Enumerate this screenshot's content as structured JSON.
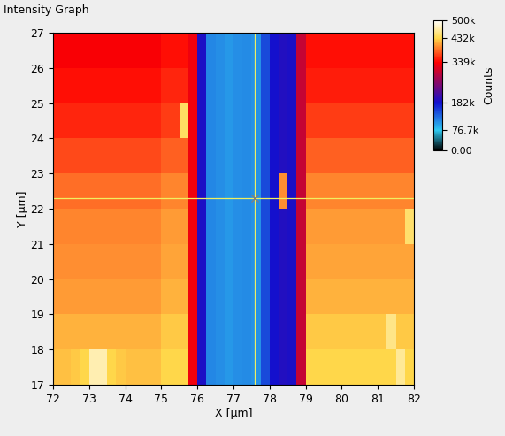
{
  "chart_data": {
    "type": "heatmap",
    "title": "Intensity Graph",
    "x_label": "X [µm]",
    "y_label": "Y [µm]",
    "x": [
      72.125,
      72.375,
      72.625,
      72.875,
      73.125,
      73.375,
      73.625,
      73.875,
      74.125,
      74.375,
      74.625,
      74.875,
      75.125,
      75.375,
      75.625,
      75.875,
      76.125,
      76.375,
      76.625,
      76.875,
      77.125,
      77.375,
      77.625,
      77.875,
      78.125,
      78.375,
      78.625,
      78.875,
      79.125,
      79.375,
      79.625,
      79.875,
      80.125,
      80.375,
      80.625,
      80.875,
      81.125,
      81.375,
      81.625,
      81.875
    ],
    "y": [
      17.5,
      18.5,
      19.5,
      20.5,
      21.5,
      22.5,
      23.5,
      24.5,
      25.5,
      26.5
    ],
    "z": [
      [
        420000,
        420000,
        425000,
        430000,
        470000,
        470000,
        430000,
        425000,
        420000,
        420000,
        420000,
        420000,
        430000,
        430000,
        430000,
        330000,
        190000,
        115000,
        110000,
        105000,
        110000,
        112000,
        108000,
        150000,
        185000,
        195000,
        190000,
        300000,
        430000,
        430000,
        430000,
        430000,
        430000,
        430000,
        430000,
        430000,
        430000,
        430000,
        460000,
        430000
      ],
      [
        415000,
        415000,
        415000,
        415000,
        415000,
        415000,
        415000,
        415000,
        415000,
        415000,
        415000,
        415000,
        425000,
        425000,
        425000,
        330000,
        190000,
        115000,
        110000,
        105000,
        110000,
        112000,
        108000,
        150000,
        185000,
        195000,
        190000,
        300000,
        425000,
        425000,
        425000,
        425000,
        425000,
        425000,
        425000,
        425000,
        425000,
        455000,
        425000,
        425000
      ],
      [
        405000,
        405000,
        405000,
        405000,
        405000,
        405000,
        405000,
        405000,
        405000,
        405000,
        405000,
        405000,
        415000,
        415000,
        415000,
        330000,
        190000,
        115000,
        110000,
        105000,
        110000,
        112000,
        108000,
        150000,
        185000,
        195000,
        190000,
        300000,
        415000,
        415000,
        415000,
        415000,
        415000,
        415000,
        415000,
        415000,
        415000,
        415000,
        415000,
        415000
      ],
      [
        400000,
        400000,
        400000,
        400000,
        400000,
        400000,
        400000,
        400000,
        400000,
        400000,
        400000,
        400000,
        410000,
        410000,
        410000,
        330000,
        190000,
        115000,
        110000,
        105000,
        110000,
        112000,
        108000,
        150000,
        185000,
        195000,
        190000,
        300000,
        410000,
        410000,
        410000,
        410000,
        410000,
        410000,
        410000,
        410000,
        410000,
        410000,
        410000,
        410000
      ],
      [
        395000,
        395000,
        395000,
        395000,
        395000,
        395000,
        395000,
        395000,
        395000,
        395000,
        395000,
        395000,
        405000,
        405000,
        405000,
        330000,
        190000,
        115000,
        110000,
        105000,
        110000,
        112000,
        108000,
        150000,
        185000,
        195000,
        190000,
        300000,
        405000,
        405000,
        405000,
        405000,
        405000,
        405000,
        405000,
        405000,
        405000,
        405000,
        405000,
        445000
      ],
      [
        385000,
        385000,
        385000,
        385000,
        385000,
        385000,
        385000,
        385000,
        385000,
        385000,
        385000,
        385000,
        395000,
        395000,
        395000,
        330000,
        190000,
        115000,
        110000,
        105000,
        110000,
        112000,
        108000,
        150000,
        185000,
        400000,
        190000,
        300000,
        395000,
        395000,
        395000,
        395000,
        395000,
        395000,
        395000,
        395000,
        395000,
        395000,
        395000,
        395000
      ],
      [
        370000,
        370000,
        370000,
        370000,
        370000,
        370000,
        370000,
        370000,
        370000,
        370000,
        370000,
        370000,
        380000,
        380000,
        380000,
        330000,
        190000,
        115000,
        110000,
        105000,
        110000,
        112000,
        108000,
        150000,
        185000,
        195000,
        190000,
        300000,
        380000,
        380000,
        380000,
        380000,
        380000,
        380000,
        380000,
        380000,
        380000,
        380000,
        380000,
        380000
      ],
      [
        355000,
        355000,
        355000,
        355000,
        355000,
        355000,
        355000,
        355000,
        355000,
        355000,
        355000,
        355000,
        365000,
        365000,
        440000,
        330000,
        190000,
        115000,
        110000,
        105000,
        110000,
        112000,
        108000,
        150000,
        185000,
        195000,
        190000,
        300000,
        365000,
        365000,
        365000,
        365000,
        365000,
        365000,
        365000,
        365000,
        365000,
        365000,
        365000,
        365000
      ],
      [
        345000,
        345000,
        345000,
        345000,
        345000,
        345000,
        345000,
        345000,
        345000,
        345000,
        345000,
        345000,
        355000,
        355000,
        355000,
        330000,
        190000,
        115000,
        110000,
        105000,
        110000,
        112000,
        108000,
        150000,
        185000,
        195000,
        190000,
        300000,
        350000,
        350000,
        350000,
        350000,
        350000,
        350000,
        350000,
        350000,
        350000,
        350000,
        350000,
        350000
      ],
      [
        335000,
        335000,
        335000,
        335000,
        335000,
        335000,
        335000,
        335000,
        335000,
        335000,
        335000,
        335000,
        345000,
        345000,
        345000,
        330000,
        190000,
        115000,
        110000,
        105000,
        110000,
        112000,
        108000,
        150000,
        185000,
        195000,
        190000,
        300000,
        345000,
        345000,
        345000,
        345000,
        345000,
        345000,
        345000,
        345000,
        345000,
        345000,
        345000,
        345000
      ]
    ],
    "xlim": [
      72,
      82
    ],
    "ylim": [
      17,
      27
    ],
    "xticks": [
      72,
      73,
      74,
      75,
      76,
      77,
      78,
      79,
      80,
      81,
      82
    ],
    "yticks": [
      17,
      18,
      19,
      20,
      21,
      22,
      23,
      24,
      25,
      26,
      27
    ],
    "colorbar": {
      "label": "Counts",
      "range": [
        0,
        500000
      ],
      "ticks": [
        {
          "value": 0,
          "label": "0.00"
        },
        {
          "value": 76700,
          "label": "76.7k"
        },
        {
          "value": 182000,
          "label": "182k"
        },
        {
          "value": 339000,
          "label": "339k"
        },
        {
          "value": 432000,
          "label": "432k"
        },
        {
          "value": 500000,
          "label": "500k"
        }
      ]
    },
    "cursor": {
      "x": 77.6,
      "y": 22.3
    }
  }
}
